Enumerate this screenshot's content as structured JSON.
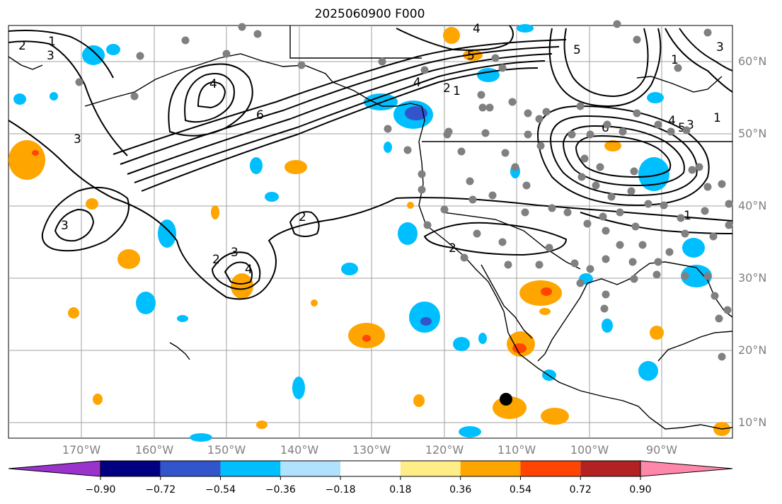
{
  "title": "2025060900 F000",
  "lat_labels": [
    "60°N",
    "50°N",
    "40°N",
    "30°N",
    "20°N",
    "10°N"
  ],
  "lon_labels": [
    "170°W",
    "160°W",
    "150°W",
    "140°W",
    "130°W",
    "120°W",
    "110°W",
    "100°W",
    "90°W"
  ],
  "contour_labels": [
    "1",
    "2",
    "3",
    "4",
    "5",
    "6"
  ],
  "colorbar": {
    "ticks": [
      "−0.90",
      "−0.72",
      "−0.54",
      "−0.36",
      "−0.18",
      "0.18",
      "0.36",
      "0.54",
      "0.72",
      "0.90"
    ],
    "colors": [
      "#9933cc",
      "#000080",
      "#3355cc",
      "#00bfff",
      "#b0e2ff",
      "#ffffff",
      "#ffee88",
      "#ffa500",
      "#ff4500",
      "#b22222",
      "#ff88aa"
    ]
  },
  "colors": {
    "grid": "#a0a0a0",
    "coast": "#000000",
    "station": "#808080",
    "marker": "#000000"
  }
}
